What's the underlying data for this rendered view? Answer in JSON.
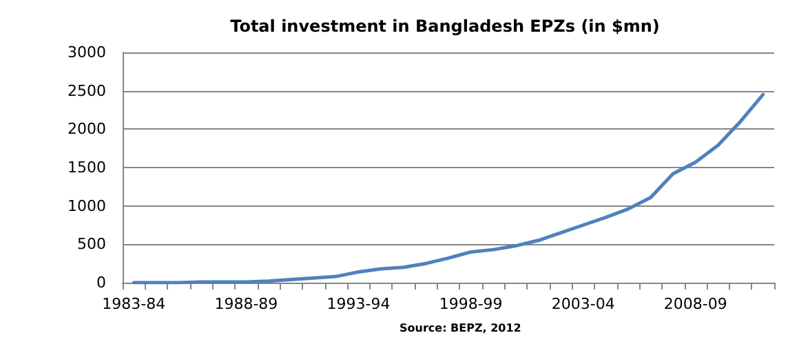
{
  "chart_data": {
    "type": "line",
    "title": "Total investment in Bangladesh EPZs (in $mn)",
    "categories": [
      "1983-84",
      null,
      null,
      null,
      null,
      "1988-89",
      null,
      null,
      null,
      null,
      "1993-94",
      null,
      null,
      null,
      null,
      "1998-99",
      null,
      null,
      null,
      null,
      "2003-04",
      null,
      null,
      null,
      null,
      "2008-09",
      null,
      null,
      null
    ],
    "series": [
      {
        "color": "#4f81bd",
        "values": [
          0,
          0,
          0,
          10,
          10,
          10,
          20,
          40,
          60,
          80,
          140,
          180,
          200,
          250,
          320,
          400,
          430,
          480,
          550,
          650,
          750,
          850,
          960,
          1110,
          1420,
          1570,
          1790,
          2100,
          2450
        ]
      }
    ],
    "ylim": [
      0,
      3000
    ],
    "yticks": [
      0,
      500,
      1000,
      1500,
      2000,
      2500,
      3000
    ],
    "grid": "y",
    "marker": "none",
    "line_style": "solid",
    "annotations": [
      "Source: BEPZ, 2012"
    ]
  }
}
